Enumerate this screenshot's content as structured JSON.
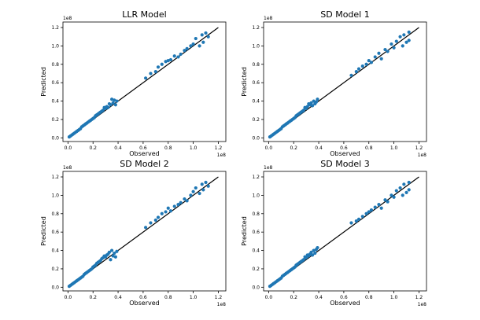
{
  "chart_data": [
    {
      "type": "scatter",
      "title": "LLR Model",
      "xlabel": "Observed",
      "ylabel": "Predicted",
      "xlim": [
        -0.04,
        1.26
      ],
      "ylim": [
        -0.04,
        1.26
      ],
      "x_ticks": [
        "0.0",
        "0.2",
        "0.4",
        "0.6",
        "0.8",
        "1.0",
        "1.2"
      ],
      "y_ticks": [
        "0.0",
        "0.2",
        "0.4",
        "0.6",
        "0.8",
        "1.0",
        "1.2"
      ],
      "x_offset_label": "1e8",
      "y_offset_label": "1e8",
      "reference_line": [
        [
          0,
          0
        ],
        [
          1.2,
          1.2
        ]
      ],
      "marker_color": "#1f77b4",
      "line_color": "#000000",
      "grid": false,
      "x": [
        0.01,
        0.02,
        0.03,
        0.04,
        0.05,
        0.06,
        0.07,
        0.08,
        0.09,
        0.1,
        0.11,
        0.12,
        0.13,
        0.14,
        0.15,
        0.16,
        0.17,
        0.18,
        0.19,
        0.2,
        0.21,
        0.22,
        0.23,
        0.24,
        0.25,
        0.26,
        0.27,
        0.28,
        0.29,
        0.3,
        0.31,
        0.32,
        0.33,
        0.34,
        0.35,
        0.36,
        0.37,
        0.38,
        0.39,
        0.62,
        0.66,
        0.7,
        0.72,
        0.75,
        0.78,
        0.8,
        0.82,
        0.85,
        0.88,
        0.9,
        0.93,
        0.95,
        0.98,
        1.0,
        1.02,
        1.05,
        1.07,
        1.08,
        1.1,
        1.12
      ],
      "y": [
        0.01,
        0.02,
        0.03,
        0.04,
        0.05,
        0.06,
        0.07,
        0.08,
        0.09,
        0.1,
        0.12,
        0.13,
        0.14,
        0.15,
        0.16,
        0.17,
        0.18,
        0.19,
        0.2,
        0.21,
        0.22,
        0.24,
        0.25,
        0.26,
        0.27,
        0.28,
        0.29,
        0.3,
        0.33,
        0.32,
        0.34,
        0.33,
        0.37,
        0.36,
        0.42,
        0.38,
        0.41,
        0.36,
        0.4,
        0.65,
        0.7,
        0.72,
        0.77,
        0.8,
        0.83,
        0.84,
        0.85,
        0.89,
        0.88,
        0.91,
        0.95,
        0.97,
        1.0,
        1.02,
        1.08,
        1.0,
        1.12,
        1.04,
        1.14,
        1.1
      ]
    },
    {
      "type": "scatter",
      "title": "SD Model 1",
      "xlabel": "Observed",
      "ylabel": "Predicted",
      "xlim": [
        -0.04,
        1.26
      ],
      "ylim": [
        -0.04,
        1.26
      ],
      "x_ticks": [
        "0.0",
        "0.2",
        "0.4",
        "0.6",
        "0.8",
        "1.0",
        "1.2"
      ],
      "y_ticks": [
        "0.0",
        "0.2",
        "0.4",
        "0.6",
        "0.8",
        "1.0",
        "1.2"
      ],
      "x_offset_label": "1e8",
      "y_offset_label": "1e8",
      "reference_line": [
        [
          0,
          0
        ],
        [
          1.2,
          1.2
        ]
      ],
      "marker_color": "#1f77b4",
      "line_color": "#000000",
      "grid": false,
      "x": [
        0.01,
        0.02,
        0.03,
        0.04,
        0.05,
        0.06,
        0.07,
        0.08,
        0.09,
        0.1,
        0.11,
        0.12,
        0.13,
        0.14,
        0.15,
        0.16,
        0.17,
        0.18,
        0.19,
        0.2,
        0.21,
        0.22,
        0.23,
        0.24,
        0.25,
        0.26,
        0.27,
        0.28,
        0.29,
        0.3,
        0.31,
        0.32,
        0.33,
        0.34,
        0.35,
        0.36,
        0.37,
        0.38,
        0.39,
        0.66,
        0.7,
        0.72,
        0.75,
        0.78,
        0.8,
        0.82,
        0.85,
        0.88,
        0.9,
        0.93,
        0.95,
        0.98,
        1.0,
        1.02,
        1.05,
        1.07,
        1.08,
        1.1,
        1.12,
        1.12
      ],
      "y": [
        0.01,
        0.02,
        0.03,
        0.04,
        0.05,
        0.06,
        0.07,
        0.08,
        0.09,
        0.1,
        0.12,
        0.13,
        0.14,
        0.15,
        0.16,
        0.17,
        0.18,
        0.19,
        0.2,
        0.21,
        0.22,
        0.24,
        0.25,
        0.26,
        0.27,
        0.28,
        0.29,
        0.3,
        0.33,
        0.32,
        0.34,
        0.37,
        0.36,
        0.38,
        0.35,
        0.4,
        0.37,
        0.39,
        0.42,
        0.68,
        0.72,
        0.75,
        0.78,
        0.8,
        0.84,
        0.82,
        0.88,
        0.92,
        0.86,
        0.96,
        0.94,
        1.02,
        0.98,
        1.05,
        1.1,
        1.0,
        1.12,
        1.04,
        1.15,
        1.06
      ]
    },
    {
      "type": "scatter",
      "title": "SD Model 2",
      "xlabel": "Observed",
      "ylabel": "Predicted",
      "xlim": [
        -0.04,
        1.26
      ],
      "ylim": [
        -0.04,
        1.26
      ],
      "x_ticks": [
        "0.0",
        "0.2",
        "0.4",
        "0.6",
        "0.8",
        "1.0",
        "1.2"
      ],
      "y_ticks": [
        "0.0",
        "0.2",
        "0.4",
        "0.6",
        "0.8",
        "1.0",
        "1.2"
      ],
      "x_offset_label": "1e8",
      "y_offset_label": "1e8",
      "reference_line": [
        [
          0,
          0
        ],
        [
          1.2,
          1.2
        ]
      ],
      "marker_color": "#1f77b4",
      "line_color": "#000000",
      "grid": false,
      "x": [
        0.01,
        0.02,
        0.03,
        0.04,
        0.05,
        0.06,
        0.07,
        0.08,
        0.09,
        0.1,
        0.11,
        0.12,
        0.13,
        0.14,
        0.15,
        0.16,
        0.17,
        0.18,
        0.19,
        0.2,
        0.21,
        0.22,
        0.23,
        0.24,
        0.25,
        0.26,
        0.27,
        0.28,
        0.29,
        0.3,
        0.31,
        0.32,
        0.33,
        0.34,
        0.35,
        0.36,
        0.37,
        0.38,
        0.39,
        0.62,
        0.66,
        0.7,
        0.72,
        0.75,
        0.78,
        0.8,
        0.82,
        0.85,
        0.88,
        0.9,
        0.93,
        0.95,
        0.98,
        1.0,
        1.02,
        1.05,
        1.07,
        1.08,
        1.1,
        1.12
      ],
      "y": [
        0.01,
        0.02,
        0.03,
        0.04,
        0.05,
        0.06,
        0.07,
        0.08,
        0.09,
        0.1,
        0.11,
        0.12,
        0.14,
        0.15,
        0.16,
        0.17,
        0.18,
        0.19,
        0.2,
        0.22,
        0.23,
        0.24,
        0.26,
        0.27,
        0.28,
        0.29,
        0.31,
        0.32,
        0.34,
        0.33,
        0.35,
        0.36,
        0.38,
        0.3,
        0.4,
        0.34,
        0.37,
        0.33,
        0.39,
        0.65,
        0.7,
        0.73,
        0.76,
        0.8,
        0.82,
        0.86,
        0.83,
        0.88,
        0.9,
        0.92,
        0.96,
        0.94,
        1.0,
        1.04,
        1.08,
        1.02,
        1.12,
        1.06,
        1.14,
        1.1
      ]
    },
    {
      "type": "scatter",
      "title": "SD Model 3",
      "xlabel": "Observed",
      "ylabel": "Predicted",
      "xlim": [
        -0.04,
        1.26
      ],
      "ylim": [
        -0.04,
        1.26
      ],
      "x_ticks": [
        "0.0",
        "0.2",
        "0.4",
        "0.6",
        "0.8",
        "1.0",
        "1.2"
      ],
      "y_ticks": [
        "0.0",
        "0.2",
        "0.4",
        "0.6",
        "0.8",
        "1.0",
        "1.2"
      ],
      "x_offset_label": "1e8",
      "y_offset_label": "1e8",
      "reference_line": [
        [
          0,
          0
        ],
        [
          1.2,
          1.2
        ]
      ],
      "marker_color": "#1f77b4",
      "line_color": "#000000",
      "grid": false,
      "x": [
        0.01,
        0.02,
        0.03,
        0.04,
        0.05,
        0.06,
        0.07,
        0.08,
        0.09,
        0.1,
        0.11,
        0.12,
        0.13,
        0.14,
        0.15,
        0.16,
        0.17,
        0.18,
        0.19,
        0.2,
        0.21,
        0.22,
        0.23,
        0.24,
        0.25,
        0.26,
        0.27,
        0.28,
        0.29,
        0.3,
        0.31,
        0.32,
        0.33,
        0.34,
        0.35,
        0.36,
        0.37,
        0.38,
        0.39,
        0.66,
        0.7,
        0.72,
        0.75,
        0.78,
        0.8,
        0.82,
        0.85,
        0.88,
        0.9,
        0.93,
        0.95,
        0.98,
        1.0,
        1.02,
        1.05,
        1.07,
        1.08,
        1.1,
        1.12,
        1.12
      ],
      "y": [
        0.01,
        0.02,
        0.03,
        0.04,
        0.05,
        0.06,
        0.07,
        0.08,
        0.09,
        0.1,
        0.12,
        0.13,
        0.14,
        0.15,
        0.16,
        0.17,
        0.18,
        0.19,
        0.2,
        0.21,
        0.22,
        0.24,
        0.25,
        0.26,
        0.27,
        0.28,
        0.29,
        0.3,
        0.33,
        0.32,
        0.35,
        0.34,
        0.36,
        0.38,
        0.35,
        0.4,
        0.37,
        0.41,
        0.43,
        0.7,
        0.72,
        0.74,
        0.77,
        0.8,
        0.82,
        0.84,
        0.87,
        0.9,
        0.86,
        0.95,
        0.93,
        1.0,
        0.98,
        1.05,
        1.08,
        1.0,
        1.12,
        1.03,
        1.14,
        1.06
      ]
    }
  ]
}
